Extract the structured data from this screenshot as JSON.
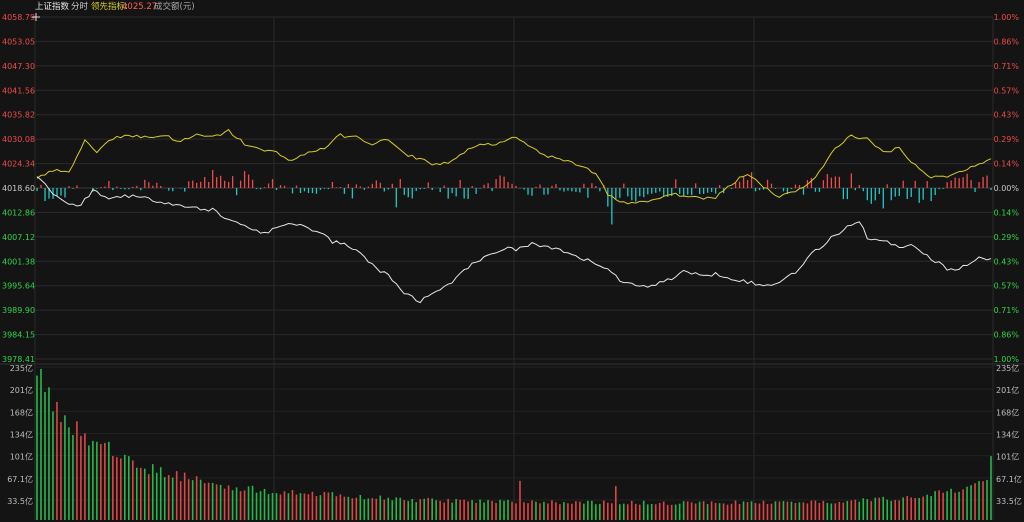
{
  "header": {
    "index_name": "上证指数",
    "mode": "分时",
    "leading_label": "领先指标:",
    "leading_value": "4025.27",
    "volume_label": "成交额(元)"
  },
  "colors": {
    "background": "#141414",
    "grid": "#2a2a2a",
    "up": "#ef4b4b",
    "down": "#22c8c8",
    "zero": "#c8c8c8",
    "down_text": "#2fd44a",
    "index_line": "#e6e6e6",
    "leading_line": "#d7cc1f",
    "vol_up": "#e04545",
    "vol_down": "#27b84c"
  },
  "chart_data": [
    {
      "type": "line",
      "name": "intraday",
      "y_ticks_left": [
        "4058.79",
        "4053.05",
        "4047.30",
        "4041.56",
        "4035.82",
        "4030.08",
        "4024.34",
        "4018.60",
        "4012.86",
        "4007.12",
        "4001.38",
        "3995.64",
        "3989.90",
        "3984.15",
        "3978.41"
      ],
      "y_ticks_right": [
        "1.00%",
        "0.86%",
        "0.71%",
        "0.57%",
        "0.43%",
        "0.29%",
        "0.14%",
        "0.00%",
        "0.14%",
        "0.29%",
        "0.43%",
        "0.57%",
        "0.71%",
        "0.86%",
        "1.00%"
      ],
      "ylim": [
        3978.41,
        4058.79
      ],
      "prev_close": 4018.6,
      "x_count": 240,
      "series": [
        {
          "key": "index",
          "anchors": [
            [
              0,
              4021.5
            ],
            [
              5,
              4016.5
            ],
            [
              10,
              4014.0
            ],
            [
              14,
              4018.0
            ],
            [
              18,
              4016.0
            ],
            [
              22,
              4017.0
            ],
            [
              28,
              4016.0
            ],
            [
              34,
              4015.0
            ],
            [
              38,
              4014.0
            ],
            [
              44,
              4013.5
            ],
            [
              48,
              4011.0
            ],
            [
              52,
              4010.0
            ],
            [
              56,
              4008.0
            ],
            [
              60,
              4009.0
            ],
            [
              64,
              4010.5
            ],
            [
              70,
              4008.5
            ],
            [
              74,
              4006.0
            ],
            [
              78,
              4005.0
            ],
            [
              82,
              4002.5
            ],
            [
              86,
              3999.0
            ],
            [
              88,
              3998.0
            ],
            [
              92,
              3994.0
            ],
            [
              96,
              3992.0
            ],
            [
              100,
              3994.0
            ],
            [
              104,
              3996.0
            ],
            [
              106,
              3999.0
            ],
            [
              110,
              4001.0
            ],
            [
              114,
              4003.0
            ],
            [
              118,
              4005.0
            ],
            [
              120,
              4004.0
            ],
            [
              124,
              4005.5
            ],
            [
              128,
              4004.5
            ],
            [
              132,
              4003.5
            ],
            [
              136,
              4002.0
            ],
            [
              140,
              4001.0
            ],
            [
              144,
              3999.0
            ],
            [
              146,
              3996.5
            ],
            [
              150,
              3996.0
            ],
            [
              154,
              3995.5
            ],
            [
              158,
              3997.0
            ],
            [
              162,
              3999.0
            ],
            [
              166,
              3998.0
            ],
            [
              170,
              3998.5
            ],
            [
              174,
              3997.5
            ],
            [
              178,
              3996.5
            ],
            [
              182,
              3995.5
            ],
            [
              186,
              3996.5
            ],
            [
              190,
              3999.0
            ],
            [
              194,
              4003.0
            ],
            [
              198,
              4006.0
            ],
            [
              202,
              4009.0
            ],
            [
              206,
              4011.0
            ],
            [
              208,
              4007.0
            ],
            [
              212,
              4006.0
            ],
            [
              216,
              4005.0
            ],
            [
              220,
              4005.0
            ],
            [
              224,
              4002.0
            ],
            [
              228,
              3999.5
            ],
            [
              232,
              4000.0
            ],
            [
              236,
              4002.0
            ],
            [
              239,
              4002.0
            ]
          ]
        },
        {
          "key": "leading",
          "anchors": [
            [
              0,
              4021.0
            ],
            [
              5,
              4023.0
            ],
            [
              8,
              4022.0
            ],
            [
              12,
              4030.0
            ],
            [
              15,
              4027.0
            ],
            [
              18,
              4030.0
            ],
            [
              22,
              4031.0
            ],
            [
              28,
              4030.5
            ],
            [
              32,
              4031.0
            ],
            [
              36,
              4029.5
            ],
            [
              40,
              4031.0
            ],
            [
              44,
              4030.5
            ],
            [
              48,
              4032.0
            ],
            [
              52,
              4029.0
            ],
            [
              56,
              4027.5
            ],
            [
              60,
              4027.0
            ],
            [
              64,
              4025.0
            ],
            [
              68,
              4027.0
            ],
            [
              72,
              4028.0
            ],
            [
              76,
              4031.0
            ],
            [
              80,
              4030.5
            ],
            [
              84,
              4029.0
            ],
            [
              88,
              4030.0
            ],
            [
              92,
              4026.5
            ],
            [
              96,
              4025.5
            ],
            [
              100,
              4024.0
            ],
            [
              104,
              4025.0
            ],
            [
              108,
              4027.5
            ],
            [
              112,
              4029.0
            ],
            [
              116,
              4029.0
            ],
            [
              120,
              4030.5
            ],
            [
              124,
              4028.0
            ],
            [
              128,
              4026.0
            ],
            [
              132,
              4025.0
            ],
            [
              136,
              4024.0
            ],
            [
              140,
              4022.0
            ],
            [
              143,
              4017.0
            ],
            [
              146,
              4015.5
            ],
            [
              150,
              4015.0
            ],
            [
              154,
              4015.5
            ],
            [
              158,
              4017.0
            ],
            [
              162,
              4017.0
            ],
            [
              166,
              4016.0
            ],
            [
              170,
              4016.5
            ],
            [
              172,
              4018.0
            ],
            [
              176,
              4021.0
            ],
            [
              178,
              4022.0
            ],
            [
              182,
              4019.0
            ],
            [
              186,
              4016.5
            ],
            [
              190,
              4018.0
            ],
            [
              194,
              4020.0
            ],
            [
              198,
              4025.0
            ],
            [
              200,
              4028.0
            ],
            [
              204,
              4031.0
            ],
            [
              208,
              4030.0
            ],
            [
              212,
              4027.0
            ],
            [
              216,
              4028.0
            ],
            [
              220,
              4024.0
            ],
            [
              224,
              4021.0
            ],
            [
              228,
              4021.5
            ],
            [
              232,
              4022.5
            ],
            [
              236,
              4024.5
            ],
            [
              239,
              4025.3
            ]
          ]
        },
        {
          "key": "breadth",
          "anchors": [
            [
              0,
              -6
            ],
            [
              3,
              -9
            ],
            [
              6,
              -11
            ],
            [
              8,
              -4
            ],
            [
              10,
              2
            ],
            [
              14,
              -3
            ],
            [
              18,
              4
            ],
            [
              22,
              -2
            ],
            [
              28,
              6
            ],
            [
              34,
              -3
            ],
            [
              38,
              7
            ],
            [
              44,
              10
            ],
            [
              48,
              5
            ],
            [
              52,
              12
            ],
            [
              56,
              -2
            ],
            [
              60,
              8
            ],
            [
              64,
              -3
            ],
            [
              70,
              -5
            ],
            [
              74,
              4
            ],
            [
              78,
              -8
            ],
            [
              82,
              -2
            ],
            [
              86,
              10
            ],
            [
              90,
              -12
            ],
            [
              94,
              -7
            ],
            [
              98,
              5
            ],
            [
              102,
              -5
            ],
            [
              106,
              -10
            ],
            [
              110,
              -4
            ],
            [
              114,
              8
            ],
            [
              118,
              6
            ],
            [
              122,
              -3
            ],
            [
              126,
              -6
            ],
            [
              130,
              -5
            ],
            [
              134,
              -2
            ],
            [
              138,
              -8
            ],
            [
              142,
              -4
            ],
            [
              144,
              -28
            ],
            [
              146,
              -6
            ],
            [
              150,
              -10
            ],
            [
              154,
              -4
            ],
            [
              158,
              -7
            ],
            [
              160,
              -10
            ],
            [
              164,
              -5
            ],
            [
              168,
              -8
            ],
            [
              172,
              -3
            ],
            [
              176,
              6
            ],
            [
              180,
              10
            ],
            [
              184,
              3
            ],
            [
              188,
              -4
            ],
            [
              192,
              8
            ],
            [
              196,
              5
            ],
            [
              200,
              14
            ],
            [
              204,
              12
            ],
            [
              208,
              -8
            ],
            [
              212,
              -12
            ],
            [
              216,
              -6
            ],
            [
              220,
              -15
            ],
            [
              224,
              -8
            ],
            [
              228,
              4
            ],
            [
              232,
              8
            ],
            [
              236,
              10
            ],
            [
              239,
              6
            ]
          ]
        }
      ]
    },
    {
      "type": "bar",
      "name": "turnover",
      "y_ticks": [
        "235亿",
        "201亿",
        "168亿",
        "134亿",
        "101亿",
        "67.1亿",
        "33.5亿"
      ],
      "ylim": [
        0,
        235
      ],
      "bar_count": 240,
      "anchors": [
        [
          0,
          225
        ],
        [
          3,
          190
        ],
        [
          6,
          168
        ],
        [
          10,
          140
        ],
        [
          15,
          118
        ],
        [
          20,
          100
        ],
        [
          25,
          86
        ],
        [
          30,
          76
        ],
        [
          40,
          62
        ],
        [
          50,
          50
        ],
        [
          60,
          44
        ],
        [
          70,
          40
        ],
        [
          80,
          36
        ],
        [
          90,
          32
        ],
        [
          100,
          30
        ],
        [
          120,
          28
        ],
        [
          140,
          27
        ],
        [
          160,
          26
        ],
        [
          180,
          27
        ],
        [
          200,
          28
        ],
        [
          215,
          33
        ],
        [
          225,
          40
        ],
        [
          232,
          48
        ],
        [
          236,
          58
        ],
        [
          238,
          65
        ],
        [
          239,
          90
        ]
      ],
      "spikes": [
        [
          1,
          232
        ],
        [
          121,
          60
        ],
        [
          145,
          52
        ],
        [
          222,
          36
        ],
        [
          230,
          42
        ]
      ]
    }
  ]
}
